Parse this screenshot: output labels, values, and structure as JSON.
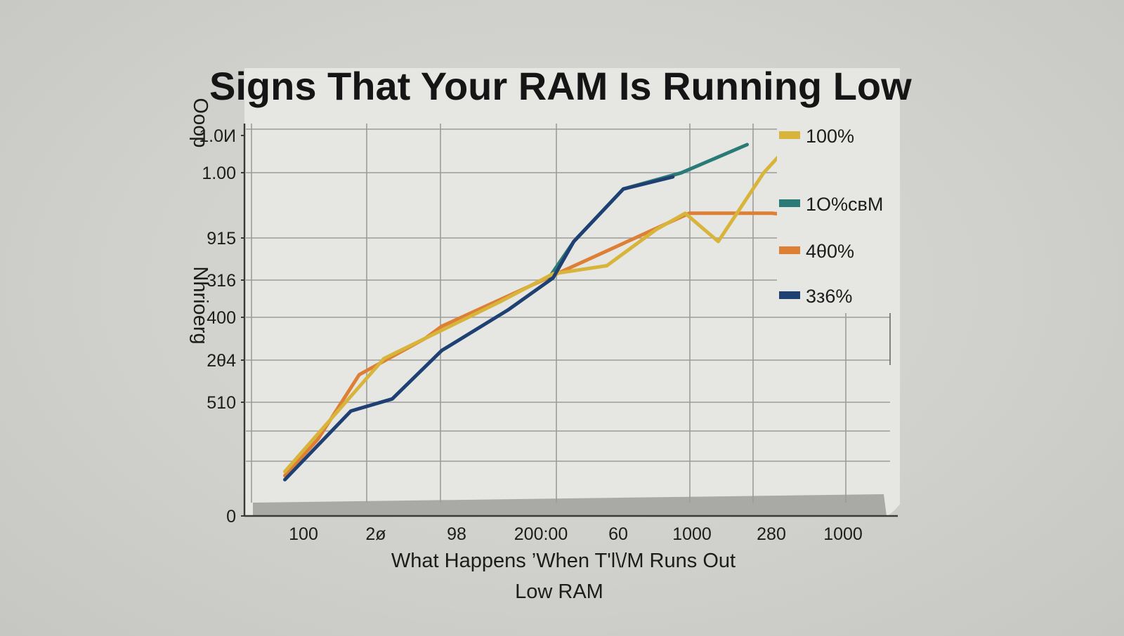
{
  "chart_data": {
    "type": "line",
    "title": "Signs That Your RAM Is Running Low",
    "xlabel": "What Happens ’When T'l\\/M Runs Out",
    "xlabel_line2": "Low RAM",
    "ylabel": "Nhrioerg",
    "y_unit_label": "Ooop",
    "x_tick_labels": [
      "100",
      "2ø",
      "98",
      "200:00",
      "60",
      "1000",
      "280",
      "1000"
    ],
    "y_tick_labels": [
      "1.0И",
      "1.00",
      "915",
      "316",
      "400",
      "2θ4",
      "510",
      "0"
    ],
    "legend_position": "top-right",
    "grid": true,
    "series": [
      {
        "name": "100%",
        "color": "#d8b43a",
        "points": [
          [
            0.2,
            0.11
          ],
          [
            1.4,
            0.39
          ],
          [
            1.9,
            0.44
          ],
          [
            2.8,
            0.53
          ],
          [
            3.45,
            0.6
          ],
          [
            4.1,
            0.62
          ],
          [
            4.7,
            0.71
          ],
          [
            5.05,
            0.75
          ],
          [
            5.45,
            0.68
          ],
          [
            6.0,
            0.85
          ],
          [
            6.4,
            0.94
          ]
        ]
      },
      {
        "name": "1O%свM",
        "color": "#2a7b78",
        "points": [
          [
            3.4,
            0.59
          ],
          [
            3.7,
            0.68
          ],
          [
            4.3,
            0.81
          ],
          [
            5.0,
            0.85
          ],
          [
            5.8,
            0.92
          ]
        ]
      },
      {
        "name": "4θ0%",
        "color": "#dd7f34",
        "points": [
          [
            0.2,
            0.1
          ],
          [
            0.6,
            0.19
          ],
          [
            1.1,
            0.35
          ],
          [
            1.9,
            0.44
          ],
          [
            2.1,
            0.47
          ],
          [
            5.1,
            0.75
          ],
          [
            6.1,
            0.75
          ],
          [
            6.6,
            0.74
          ]
        ]
      },
      {
        "name": "3з6%",
        "color": "#1f4072",
        "points": [
          [
            0.2,
            0.09
          ],
          [
            1.0,
            0.26
          ],
          [
            1.5,
            0.29
          ],
          [
            2.1,
            0.41
          ],
          [
            2.9,
            0.51
          ],
          [
            3.45,
            0.59
          ],
          [
            3.7,
            0.68
          ],
          [
            4.3,
            0.81
          ],
          [
            4.9,
            0.84
          ]
        ]
      }
    ]
  }
}
